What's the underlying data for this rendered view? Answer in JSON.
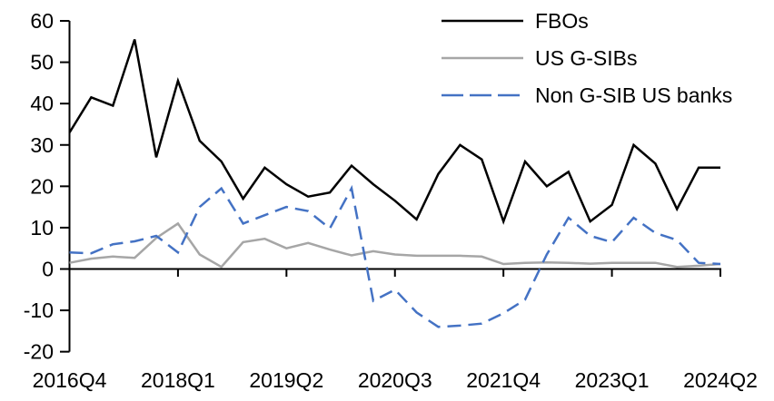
{
  "chart_data": {
    "type": "line",
    "title": "",
    "xlabel": "",
    "ylabel": "",
    "grid": false,
    "legend_position": "top-right",
    "axis_color": "#000000",
    "text_color": "#000000",
    "ylim": [
      -20,
      60
    ],
    "y_ticks": [
      -20,
      -10,
      0,
      10,
      20,
      30,
      40,
      50,
      60
    ],
    "y_tick_labels": [
      "-20",
      "-10",
      "0",
      "10",
      "20",
      "30",
      "40",
      "50",
      "60"
    ],
    "x_tick_positions": [
      0,
      5,
      10,
      15,
      20,
      25,
      30
    ],
    "x_tick_labels": [
      "2016Q4",
      "2018Q1",
      "2019Q2",
      "2020Q3",
      "2021Q4",
      "2023Q1",
      "2024Q2"
    ],
    "x_quarters": [
      "2016Q4",
      "2017Q1",
      "2017Q2",
      "2017Q3",
      "2017Q4",
      "2018Q1",
      "2018Q2",
      "2018Q3",
      "2018Q4",
      "2019Q1",
      "2019Q2",
      "2019Q3",
      "2019Q4",
      "2020Q1",
      "2020Q2",
      "2020Q3",
      "2020Q4",
      "2021Q1",
      "2021Q2",
      "2021Q3",
      "2021Q4",
      "2022Q1",
      "2022Q2",
      "2022Q3",
      "2022Q4",
      "2023Q1",
      "2023Q2",
      "2023Q3",
      "2023Q4",
      "2024Q1",
      "2024Q2"
    ],
    "series": [
      {
        "id": "fbos",
        "name": "FBOs",
        "color": "#000000",
        "dash": "solid",
        "values": [
          33,
          41.5,
          39.5,
          55.5,
          27,
          45.5,
          31,
          26,
          17,
          24.5,
          20.5,
          17.5,
          18.5,
          25,
          20.5,
          16.5,
          12,
          23,
          30,
          26.5,
          11.5,
          26,
          20,
          23.5,
          11.5,
          15.5,
          30,
          25.5,
          14.5,
          24.5,
          24.5
        ]
      },
      {
        "id": "us-gsibs",
        "name": "US G-SIBs",
        "color": "#a6a6a6",
        "dash": "solid",
        "values": [
          1.5,
          2.5,
          3,
          2.7,
          7.5,
          11,
          3.5,
          0.5,
          6.5,
          7.3,
          5,
          6.3,
          4.7,
          3.3,
          4.3,
          3.5,
          3.2,
          3.2,
          3.2,
          3,
          1.2,
          1.5,
          1.6,
          1.5,
          1.3,
          1.5,
          1.5,
          1.5,
          0.5,
          0.8,
          1.2
        ]
      },
      {
        "id": "non-gsib-us-banks",
        "name": "Non G-SIB US banks",
        "color": "#4472c4",
        "dash": "dashed",
        "values": [
          4,
          3.8,
          6,
          6.7,
          8,
          4,
          15,
          19.5,
          11,
          13,
          15,
          14,
          9.8,
          19.5,
          -7.7,
          -5,
          -10.5,
          -14,
          -13.7,
          -13.2,
          -10.7,
          -7.4,
          3.5,
          12.4,
          8,
          6.5,
          12.4,
          8.7,
          7,
          1.5,
          1.2
        ]
      }
    ]
  }
}
